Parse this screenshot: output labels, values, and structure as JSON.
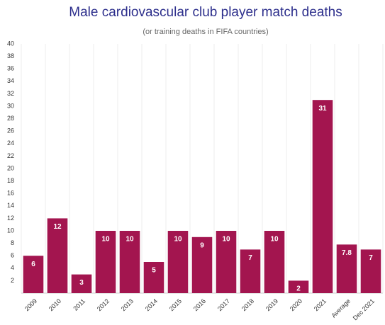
{
  "chart_data": {
    "type": "bar",
    "title": "Male cardiovascular club player match deaths",
    "subtitle": "(or training deaths in FIFA countries)",
    "categories": [
      "2009",
      "2010",
      "2011",
      "2012",
      "2013",
      "2014",
      "2015",
      "2016",
      "2017",
      "2018",
      "2019",
      "2020",
      "2021",
      "Average",
      "Dec 2021"
    ],
    "values": [
      6,
      12,
      3,
      10,
      10,
      5,
      10,
      9,
      10,
      7,
      10,
      2,
      31,
      7.8,
      7
    ],
    "color": "#a3154f",
    "ylim": [
      0,
      40
    ],
    "yticks": [
      2,
      4,
      6,
      8,
      10,
      12,
      14,
      16,
      18,
      20,
      22,
      24,
      26,
      28,
      30,
      32,
      34,
      36,
      38,
      40
    ],
    "grid": true
  }
}
